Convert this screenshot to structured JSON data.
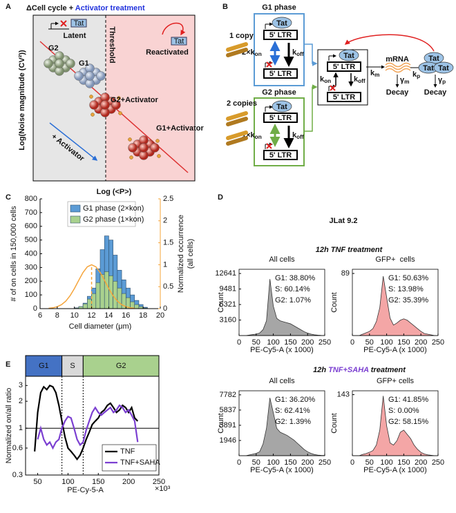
{
  "panel_labels": [
    "A",
    "B",
    "C",
    "D",
    "E"
  ],
  "diagram_a": {
    "title": "ΔCell cycle + ",
    "title_highlight": "Activator treatment",
    "y_label": "Log(Noise magnitude (CV²))",
    "x_label": "Log (<P>)",
    "tat": "Tat",
    "latent": "Latent",
    "reactivated": "Reactivated",
    "threshold": "Threshold",
    "g2": "G2",
    "g1": "G1",
    "g2_activator": "G2+Activator",
    "g1_activator": "G1+Activator",
    "activator_arrow": "+ Activator"
  },
  "diagram_b": {
    "g1_phase": "G1 phase",
    "g2_phase": "G2 phase",
    "one_copy": "1 copy",
    "two_copies": "2 copies",
    "tat": "Tat",
    "ltr": "5' LTR",
    "g1_kon": {
      "text": "2×k",
      "sub": "on"
    },
    "g2_kon": {
      "text": "1×k",
      "sub": "on"
    },
    "koff": {
      "text": "k",
      "sub": "off"
    },
    "kon": {
      "text": "k",
      "sub": "on"
    },
    "km": {
      "text": "k",
      "sub": "m"
    },
    "mrna": "mRNA",
    "gamma_m": {
      "text": "γ",
      "sub": "m"
    },
    "kp": {
      "text": "k",
      "sub": "p"
    },
    "gamma_p": {
      "text": "γ",
      "sub": "p"
    },
    "decay": "Decay"
  },
  "panel_d": {
    "title": "JLat 9.2",
    "treatment_1": "12h TNF treatment",
    "treatment_2_prefix": "12h ",
    "treatment_2_highlight": "TNF+SAHA",
    "treatment_2_suffix": " treatment"
  },
  "chart_data": [
    {
      "type": "histogram",
      "x_label": "Cell diameter (μm)",
      "y_label": "# of on cells in 150,000 cells",
      "y2_label": [
        "Normalized occurrence",
        "(all cells)"
      ],
      "bins": [
        10,
        10.5,
        11,
        11.5,
        12,
        12.5,
        13,
        13.5,
        14,
        14.5,
        15,
        15.5,
        16,
        16.5,
        17,
        17.5,
        18,
        18.5
      ],
      "series": [
        {
          "name": "G1 phase (2×kon)",
          "color": "#5b9bd5",
          "values": [
            5,
            15,
            40,
            90,
            150,
            290,
            430,
            530,
            500,
            390,
            280,
            210,
            150,
            100,
            60,
            30,
            10
          ]
        },
        {
          "name": "G2 phase (1×kon)",
          "color": "#a9d18e",
          "values": [
            5,
            15,
            35,
            70,
            110,
            190,
            250,
            270,
            240,
            200,
            150,
            110,
            80,
            50,
            30,
            15,
            5
          ]
        }
      ],
      "curve": {
        "axis": "y2",
        "color": "#f5a43a",
        "x": [
          7,
          7.5,
          8,
          8.5,
          9,
          9.5,
          10,
          10.5,
          11,
          11.5,
          12,
          12.5,
          13,
          13.5,
          14,
          14.5,
          15,
          15.5,
          16,
          16.5,
          17
        ],
        "values": [
          0.008,
          0.019,
          0.044,
          0.091,
          0.172,
          0.295,
          0.458,
          0.644,
          0.823,
          0.952,
          1,
          0.952,
          0.823,
          0.644,
          0.458,
          0.295,
          0.172,
          0.091,
          0.044,
          0.019,
          0.008
        ]
      },
      "peak_x": 12,
      "legend": "upper-left",
      "xlim": [
        6,
        20
      ],
      "xticks": [
        6,
        8,
        10,
        12,
        14,
        16,
        18,
        20
      ],
      "ylim": [
        0,
        800
      ],
      "yticks": [
        0,
        100,
        200,
        300,
        400,
        500,
        600,
        700,
        800
      ],
      "y2lim": [
        0,
        2.5
      ],
      "y2ticks": [
        0,
        0.5,
        1,
        1.5,
        2,
        2.5
      ]
    },
    {
      "type": "area",
      "title": "All cells",
      "stats": [
        "G1: 38.80%",
        "S: 60.14%",
        "G2: 1.07%"
      ],
      "y_label": "Count",
      "x_label": "PE-Cy5-A (x 1000)",
      "color": "#a6a6a6",
      "x": [
        0,
        10,
        20,
        30,
        40,
        50,
        60,
        70,
        80,
        90,
        100,
        110,
        120,
        130,
        140,
        150,
        160,
        170,
        180,
        190,
        200,
        210,
        220,
        230,
        240,
        250
      ],
      "values": [
        0,
        0,
        0,
        100,
        200,
        300,
        500,
        1200,
        3000,
        11500,
        6000,
        3500,
        3000,
        2800,
        2600,
        2400,
        2000,
        1600,
        1200,
        800,
        500,
        300,
        150,
        80,
        40,
        20
      ],
      "xlim": [
        0,
        250
      ],
      "xticks": [
        0,
        50,
        100,
        150,
        200,
        250
      ],
      "ylim": [
        0,
        13500
      ],
      "yticks": [
        3160,
        6321,
        9481,
        12641
      ]
    },
    {
      "type": "area",
      "title": "GFP+  cells",
      "stats": [
        "G1: 50.63%",
        "S: 13.98%",
        "G2: 35.39%"
      ],
      "y_label": "Count",
      "x_label": "PE-Cy5-A (x 1000)",
      "color": "#f4a6a6",
      "x": [
        0,
        10,
        20,
        30,
        40,
        50,
        60,
        70,
        80,
        90,
        100,
        110,
        120,
        130,
        140,
        150,
        160,
        170,
        180,
        190,
        200,
        210,
        220,
        230,
        240,
        250
      ],
      "values": [
        0,
        0,
        0,
        2,
        4,
        6,
        10,
        20,
        40,
        85,
        55,
        25,
        15,
        18,
        22,
        24,
        22,
        18,
        14,
        10,
        6,
        3,
        2,
        1,
        0,
        0
      ],
      "xlim": [
        0,
        250
      ],
      "xticks": [
        0,
        50,
        100,
        150,
        200,
        250
      ],
      "ylim": [
        0,
        95
      ],
      "yticks": [
        89
      ]
    },
    {
      "type": "area",
      "title": "All cells",
      "stats": [
        "G1: 36.20%",
        "S: 62.41%",
        "G2: 1.39%"
      ],
      "y_label": "Count",
      "x_label": "PE-Cy5-A (x 1000)",
      "color": "#a6a6a6",
      "x": [
        0,
        10,
        20,
        30,
        40,
        50,
        60,
        70,
        80,
        90,
        100,
        110,
        120,
        130,
        140,
        150,
        160,
        170,
        180,
        190,
        200,
        210,
        220,
        230,
        240,
        250
      ],
      "values": [
        0,
        0,
        0,
        100,
        200,
        300,
        500,
        1500,
        3500,
        7400,
        5500,
        3500,
        3000,
        2800,
        2600,
        2300,
        2000,
        1600,
        1200,
        800,
        500,
        300,
        150,
        80,
        40,
        20
      ],
      "xlim": [
        0,
        250
      ],
      "xticks": [
        0,
        50,
        100,
        150,
        200,
        250
      ],
      "ylim": [
        0,
        8300
      ],
      "yticks": [
        1946,
        3891,
        5837,
        7782
      ]
    },
    {
      "type": "area",
      "title": "GFP+ cells",
      "stats": [
        "G1: 41.85%",
        "S: 0.00%",
        "G2: 58.15%"
      ],
      "y_label": "Count",
      "x_label": "PE-Cy5-A (x 1000)",
      "color": "#f4a6a6",
      "x": [
        0,
        10,
        20,
        30,
        40,
        50,
        60,
        70,
        80,
        90,
        100,
        110,
        120,
        130,
        140,
        150,
        160,
        170,
        180,
        190,
        200,
        210,
        220,
        230,
        240,
        250
      ],
      "values": [
        0,
        0,
        0,
        3,
        5,
        8,
        12,
        25,
        60,
        140,
        70,
        30,
        25,
        35,
        55,
        60,
        50,
        40,
        25,
        15,
        8,
        4,
        2,
        1,
        0,
        0
      ],
      "xlim": [
        0,
        250
      ],
      "xticks": [
        0,
        50,
        100,
        150,
        200,
        250
      ],
      "ylim": [
        0,
        152
      ],
      "yticks": [
        143
      ]
    },
    {
      "type": "line",
      "header": [
        "G1",
        "S",
        "G2"
      ],
      "header_colors": [
        "#4472c4",
        "#d9d9d9",
        "#a9d18e"
      ],
      "phase_boundaries": [
        90,
        125
      ],
      "y_label": "Normalized on/all ratio",
      "x_label": "PE-Cy-5-A",
      "x_multiplier": "×10³",
      "log_y": true,
      "reference_line": 1,
      "legend": "lower-right",
      "x": [
        45,
        50,
        55,
        60,
        65,
        70,
        75,
        80,
        85,
        90,
        95,
        100,
        105,
        110,
        115,
        120,
        125,
        130,
        135,
        140,
        145,
        150,
        155,
        160,
        165,
        170,
        175,
        180,
        185,
        190,
        195,
        200,
        205,
        210,
        215
      ],
      "series": [
        {
          "name": "TNF",
          "color": "#000000",
          "values": [
            0.55,
            1.5,
            2.5,
            2.9,
            2.7,
            3.0,
            2.9,
            2.5,
            1.8,
            1.2,
            0.8,
            0.6,
            0.55,
            0.5,
            0.45,
            0.5,
            0.6,
            0.75,
            0.9,
            1.1,
            1.2,
            1.3,
            1.5,
            1.6,
            1.8,
            1.9,
            1.7,
            1.5,
            1.6,
            1.8,
            1.7,
            1.5,
            1.7,
            1.3,
            1.2
          ]
        },
        {
          "name": "TNF+SAHA",
          "color": "#7b3fd1",
          "values": [
            null,
            0.75,
            1.0,
            0.75,
            0.65,
            0.7,
            0.6,
            0.7,
            0.75,
            1.0,
            1.2,
            1.35,
            1.3,
            1.0,
            0.75,
            0.65,
            0.7,
            0.95,
            1.2,
            1.5,
            1.7,
            1.5,
            1.4,
            1.5,
            1.6,
            1.7,
            1.5,
            1.6,
            1.8,
            1.7,
            1.5,
            1.6,
            1.4,
            1.2,
            0.7
          ]
        }
      ],
      "xlim": [
        30,
        250
      ],
      "xticks": [
        50,
        100,
        150,
        200,
        250
      ],
      "ylim": [
        0.3,
        3.8
      ],
      "yticks": [
        0.3,
        0.6,
        1,
        2,
        3
      ]
    }
  ]
}
